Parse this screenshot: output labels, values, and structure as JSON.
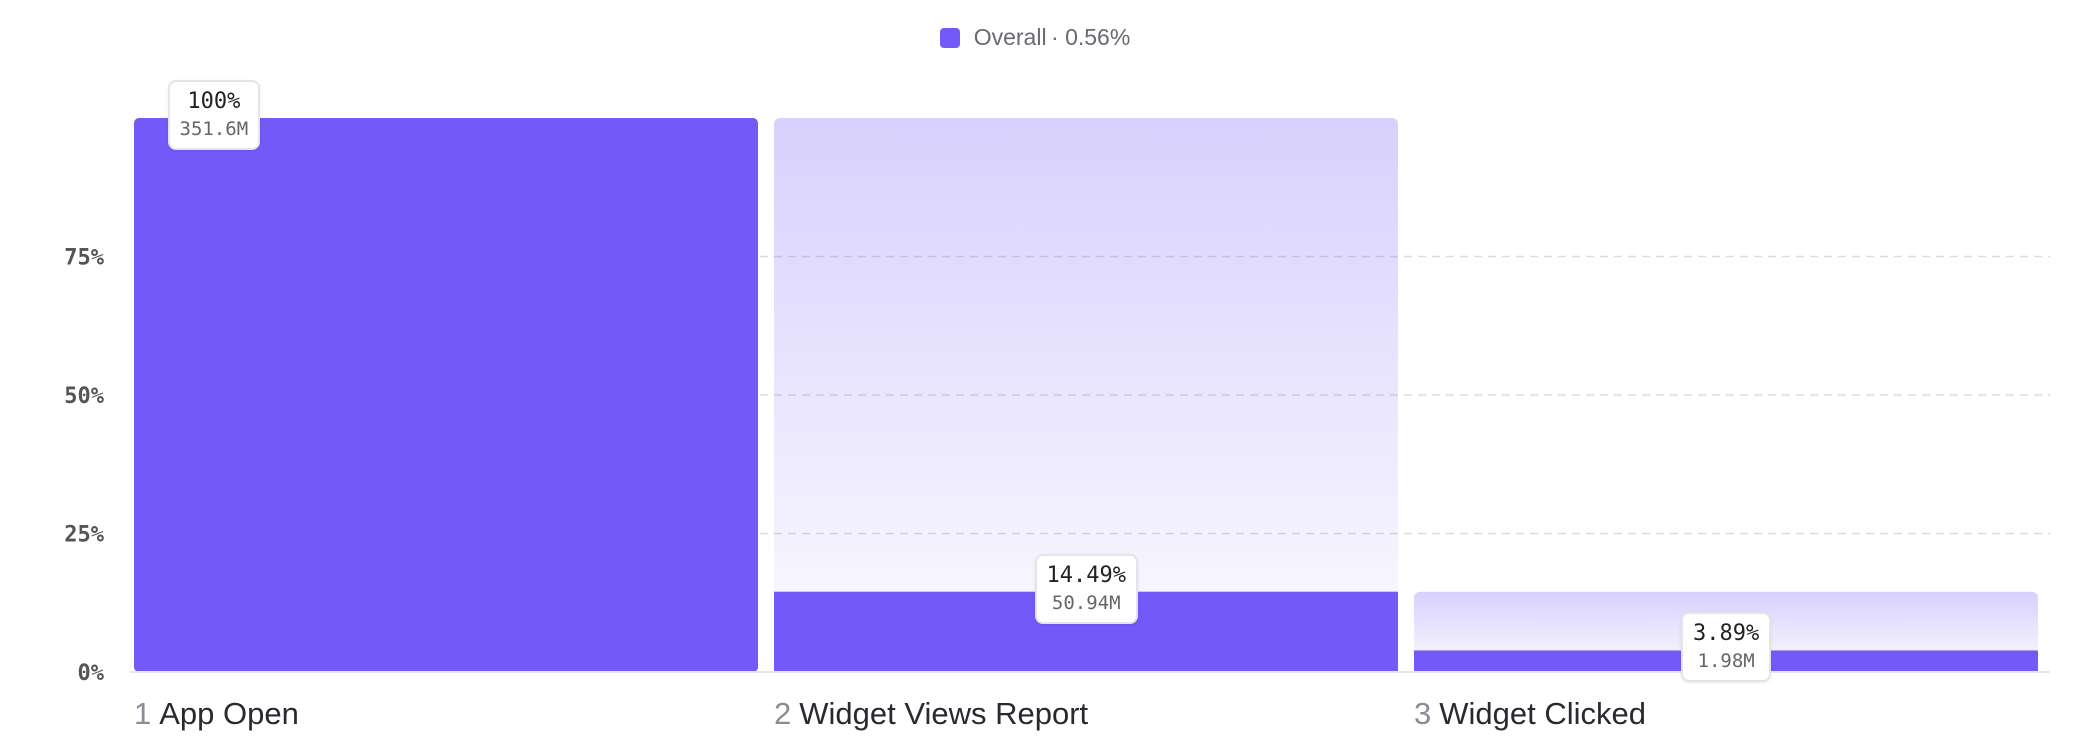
{
  "legend": {
    "label": "Overall",
    "value": "· 0.56%",
    "color": "#7359f8"
  },
  "chart_data": {
    "type": "bar",
    "title": "",
    "xlabel": "",
    "ylabel": "",
    "ylim": [
      0,
      100
    ],
    "yticks": [
      0,
      25,
      50,
      75
    ],
    "ytick_labels": [
      "0%",
      "25%",
      "50%",
      "75%"
    ],
    "grid": true,
    "legend_position": "top-center",
    "categories": [
      "App Open",
      "Widget Views Report",
      "Widget Clicked"
    ],
    "step_numbers": [
      "1",
      "2",
      "3"
    ],
    "series": [
      {
        "name": "Overall",
        "values": [
          100,
          14.49,
          3.89
        ],
        "color": "#7359f8"
      }
    ],
    "previous_step_ghost": [
      null,
      100,
      14.49
    ],
    "value_labels": [
      "100%",
      "14.49%",
      "3.89%"
    ],
    "count_labels": [
      "351.6M",
      "50.94M",
      "1.98M"
    ]
  }
}
